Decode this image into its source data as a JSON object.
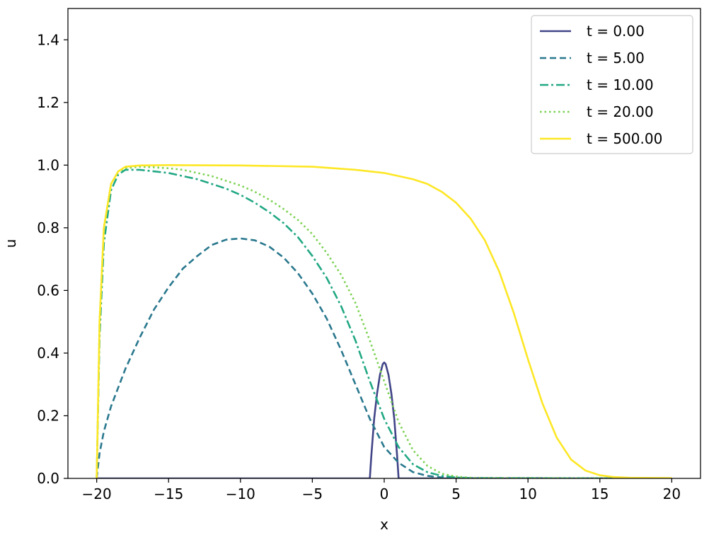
{
  "chart_data": {
    "type": "line",
    "title": "",
    "xlabel": "x",
    "ylabel": "u",
    "xlim": [
      -22,
      22
    ],
    "ylim": [
      0,
      1.5
    ],
    "xticks": [
      -20,
      -15,
      -10,
      -5,
      0,
      5,
      10,
      15,
      20
    ],
    "xtick_labels": [
      "−20",
      "−15",
      "−10",
      "−5",
      "0",
      "5",
      "10",
      "15",
      "20"
    ],
    "yticks": [
      0.0,
      0.2,
      0.4,
      0.6,
      0.8,
      1.0,
      1.2,
      1.4
    ],
    "ytick_labels": [
      "0.0",
      "0.2",
      "0.4",
      "0.6",
      "0.8",
      "1.0",
      "1.2",
      "1.4"
    ],
    "grid": false,
    "legend_position": "top-right",
    "series": [
      {
        "name": "t = 0.00",
        "color": "#414487",
        "style": "solid",
        "x": [
          -20,
          -1.0,
          -0.9,
          -0.7,
          -0.5,
          -0.3,
          -0.1,
          0.0,
          0.1,
          0.3,
          0.5,
          0.7,
          0.9,
          1.0,
          20
        ],
        "y": [
          0,
          0,
          0.07,
          0.19,
          0.27,
          0.33,
          0.365,
          0.37,
          0.365,
          0.33,
          0.27,
          0.19,
          0.07,
          0,
          0
        ]
      },
      {
        "name": "t = 5.00",
        "color": "#2a788e",
        "style": "dashed",
        "x": [
          -20,
          -19.8,
          -19.5,
          -19,
          -18,
          -17,
          -16,
          -15,
          -14,
          -13,
          -12,
          -11,
          -10,
          -9,
          -8,
          -7,
          -6,
          -5,
          -4,
          -3,
          -2,
          -1,
          0,
          1,
          2,
          3,
          4,
          5,
          20
        ],
        "y": [
          0,
          0.08,
          0.15,
          0.23,
          0.35,
          0.45,
          0.54,
          0.61,
          0.67,
          0.71,
          0.745,
          0.762,
          0.766,
          0.76,
          0.74,
          0.705,
          0.655,
          0.59,
          0.51,
          0.41,
          0.3,
          0.19,
          0.1,
          0.05,
          0.02,
          0.008,
          0.003,
          0.001,
          0
        ]
      },
      {
        "name": "t = 10.00",
        "color": "#22a884",
        "style": "dashdot",
        "x": [
          -20,
          -19.8,
          -19.5,
          -19,
          -18.5,
          -18,
          -17,
          -16,
          -15,
          -14,
          -13,
          -12,
          -11,
          -10,
          -9,
          -8,
          -7,
          -6,
          -5,
          -4,
          -3,
          -2,
          -1,
          0,
          1,
          2,
          3,
          4,
          5,
          6,
          20
        ],
        "y": [
          0,
          0.45,
          0.75,
          0.92,
          0.97,
          0.985,
          0.985,
          0.98,
          0.975,
          0.965,
          0.955,
          0.94,
          0.925,
          0.905,
          0.88,
          0.85,
          0.815,
          0.77,
          0.71,
          0.64,
          0.55,
          0.44,
          0.31,
          0.19,
          0.1,
          0.045,
          0.02,
          0.008,
          0.003,
          0.001,
          0
        ]
      },
      {
        "name": "t = 20.00",
        "color": "#7ad151",
        "style": "dotted",
        "x": [
          -20,
          -19.8,
          -19.5,
          -19,
          -18.5,
          -18,
          -17,
          -16,
          -15,
          -14,
          -13,
          -12,
          -11,
          -10,
          -9,
          -8,
          -7,
          -6,
          -5,
          -4,
          -3,
          -2,
          -1,
          0,
          1,
          2,
          3,
          4,
          5,
          6,
          7,
          20
        ],
        "y": [
          0,
          0.5,
          0.8,
          0.94,
          0.98,
          0.99,
          0.995,
          0.993,
          0.99,
          0.985,
          0.975,
          0.965,
          0.95,
          0.935,
          0.915,
          0.89,
          0.86,
          0.825,
          0.78,
          0.72,
          0.65,
          0.56,
          0.44,
          0.31,
          0.18,
          0.09,
          0.04,
          0.015,
          0.006,
          0.002,
          0.001,
          0
        ]
      },
      {
        "name": "t = 500.00",
        "color": "#fde725",
        "style": "solid",
        "x": [
          -20,
          -19.8,
          -19.5,
          -19,
          -18.5,
          -18,
          -17,
          -15,
          -10,
          -5,
          -2,
          0,
          2,
          3,
          4,
          5,
          6,
          7,
          8,
          9,
          10,
          11,
          12,
          13,
          14,
          15,
          16,
          17,
          20
        ],
        "y": [
          0,
          0.5,
          0.8,
          0.94,
          0.98,
          0.995,
          0.999,
          1.0,
          0.999,
          0.995,
          0.985,
          0.975,
          0.955,
          0.94,
          0.915,
          0.88,
          0.83,
          0.76,
          0.66,
          0.53,
          0.38,
          0.24,
          0.13,
          0.06,
          0.025,
          0.01,
          0.004,
          0.002,
          0.001
        ]
      }
    ]
  }
}
